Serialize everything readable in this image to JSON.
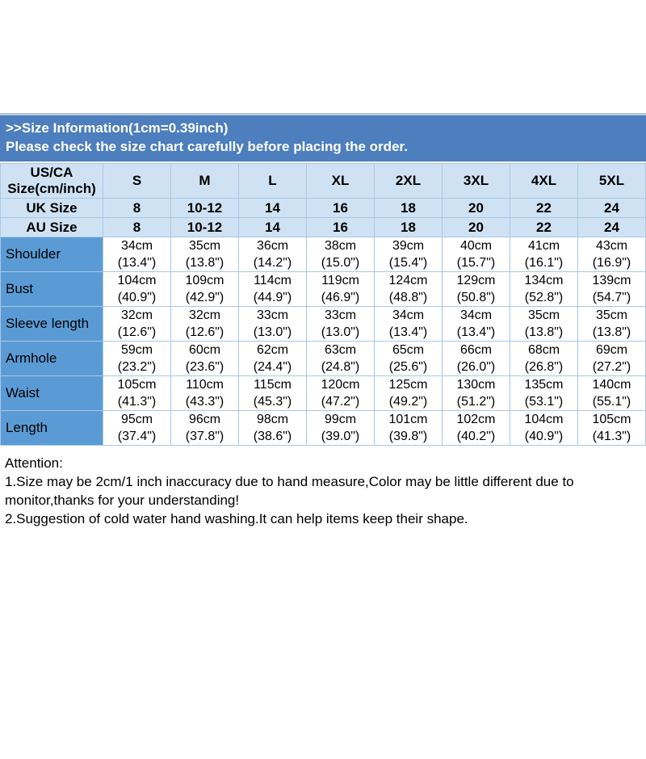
{
  "banner": {
    "bg_color": "#4d7ebd",
    "line1": ">>Size Information(1cm=0.39inch)",
    "line2": "Please check the size chart carefully before placing the order."
  },
  "colors": {
    "banner_blue": "#4d7ebd",
    "header_light_blue": "#cfe2f3",
    "label_column_blue": "#5b9bd5",
    "grid_border": "#a9c7e6"
  },
  "table": {
    "corner": {
      "line1": "US/CA",
      "line2": "Size(cm/inch)"
    },
    "sizes": [
      "S",
      "M",
      "L",
      "XL",
      "2XL",
      "3XL",
      "4XL",
      "5XL"
    ],
    "uk": {
      "label": "UK Size",
      "values": [
        "8",
        "10-12",
        "14",
        "16",
        "18",
        "20",
        "22",
        "24"
      ]
    },
    "au": {
      "label": "AU Size",
      "values": [
        "8",
        "10-12",
        "14",
        "16",
        "18",
        "20",
        "22",
        "24"
      ]
    },
    "rows": [
      {
        "label": "Shoulder",
        "values": [
          {
            "cm": "34cm",
            "in": "(13.4\")"
          },
          {
            "cm": "35cm",
            "in": "(13.8\")"
          },
          {
            "cm": "36cm",
            "in": "(14.2\")"
          },
          {
            "cm": "38cm",
            "in": "(15.0\")"
          },
          {
            "cm": "39cm",
            "in": "(15.4\")"
          },
          {
            "cm": "40cm",
            "in": "(15.7\")"
          },
          {
            "cm": "41cm",
            "in": "(16.1\")"
          },
          {
            "cm": "43cm",
            "in": "(16.9\")"
          }
        ]
      },
      {
        "label": "Bust",
        "values": [
          {
            "cm": "104cm",
            "in": "(40.9\")"
          },
          {
            "cm": "109cm",
            "in": "(42.9\")"
          },
          {
            "cm": "114cm",
            "in": "(44.9\")"
          },
          {
            "cm": "119cm",
            "in": "(46.9\")"
          },
          {
            "cm": "124cm",
            "in": "(48.8\")"
          },
          {
            "cm": "129cm",
            "in": "(50.8\")"
          },
          {
            "cm": "134cm",
            "in": "(52.8\")"
          },
          {
            "cm": "139cm",
            "in": "(54.7\")"
          }
        ]
      },
      {
        "label": "Sleeve length",
        "values": [
          {
            "cm": "32cm",
            "in": "(12.6\")"
          },
          {
            "cm": "32cm",
            "in": "(12.6\")"
          },
          {
            "cm": "33cm",
            "in": "(13.0\")"
          },
          {
            "cm": "33cm",
            "in": "(13.0\")"
          },
          {
            "cm": "34cm",
            "in": "(13.4\")"
          },
          {
            "cm": "34cm",
            "in": "(13.4\")"
          },
          {
            "cm": "35cm",
            "in": "(13.8\")"
          },
          {
            "cm": "35cm",
            "in": "(13.8\")"
          }
        ]
      },
      {
        "label": "Armhole",
        "values": [
          {
            "cm": "59cm",
            "in": "(23.2\")"
          },
          {
            "cm": "60cm",
            "in": "(23.6\")"
          },
          {
            "cm": "62cm",
            "in": "(24.4\")"
          },
          {
            "cm": "63cm",
            "in": "(24.8\")"
          },
          {
            "cm": "65cm",
            "in": "(25.6\")"
          },
          {
            "cm": "66cm",
            "in": "(26.0\")"
          },
          {
            "cm": "68cm",
            "in": "(26.8\")"
          },
          {
            "cm": "69cm",
            "in": "(27.2\")"
          }
        ]
      },
      {
        "label": "Waist",
        "values": [
          {
            "cm": "105cm",
            "in": "(41.3\")"
          },
          {
            "cm": "110cm",
            "in": "(43.3\")"
          },
          {
            "cm": "115cm",
            "in": "(45.3\")"
          },
          {
            "cm": "120cm",
            "in": "(47.2\")"
          },
          {
            "cm": "125cm",
            "in": "(49.2\")"
          },
          {
            "cm": "130cm",
            "in": "(51.2\")"
          },
          {
            "cm": "135cm",
            "in": "(53.1\")"
          },
          {
            "cm": "140cm",
            "in": "(55.1\")"
          }
        ]
      },
      {
        "label": "Length",
        "values": [
          {
            "cm": "95cm",
            "in": "(37.4\")"
          },
          {
            "cm": "96cm",
            "in": "(37.8\")"
          },
          {
            "cm": "98cm",
            "in": "(38.6\")"
          },
          {
            "cm": "99cm",
            "in": "(39.0\")"
          },
          {
            "cm": "101cm",
            "in": "(39.8\")"
          },
          {
            "cm": "102cm",
            "in": "(40.2\")"
          },
          {
            "cm": "104cm",
            "in": "(40.9\")"
          },
          {
            "cm": "105cm",
            "in": "(41.3\")"
          }
        ]
      }
    ]
  },
  "attention": {
    "title": "Attention:",
    "item1": "1.Size may be 2cm/1 inch inaccuracy due to hand measure,Color may be little different due to monitor,thanks for your understanding!",
    "item2": "2.Suggestion of cold water hand washing.It can help items keep their shape."
  }
}
